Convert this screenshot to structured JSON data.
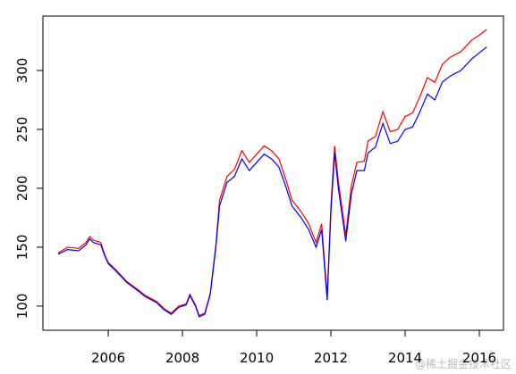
{
  "chart_data": {
    "type": "line",
    "x": [
      2004.65,
      2004.9,
      2005.2,
      2005.4,
      2005.5,
      2005.6,
      2005.8,
      2005.9,
      2006.0,
      2006.2,
      2006.5,
      2006.8,
      2007.0,
      2007.3,
      2007.5,
      2007.7,
      2007.9,
      2008.1,
      2008.2,
      2008.35,
      2008.45,
      2008.6,
      2008.75,
      2008.9,
      2009.0,
      2009.2,
      2009.4,
      2009.6,
      2009.8,
      2010.0,
      2010.2,
      2010.4,
      2010.6,
      2010.8,
      2010.95,
      2011.2,
      2011.4,
      2011.6,
      2011.75,
      2011.9,
      2012.0,
      2012.1,
      2012.2,
      2012.4,
      2012.55,
      2012.7,
      2012.9,
      2013.0,
      2013.2,
      2013.4,
      2013.6,
      2013.8,
      2014.0,
      2014.2,
      2014.4,
      2014.6,
      2014.8,
      2015.0,
      2015.2,
      2015.5,
      2015.8,
      2016.0,
      2016.2
    ],
    "series": [
      {
        "name": "red",
        "color": "#ff0000",
        "values": [
          145,
          150,
          149,
          154,
          159,
          156,
          154,
          144,
          137,
          131,
          121,
          114,
          109,
          104,
          98,
          94,
          100,
          102,
          110,
          101,
          92,
          94,
          111,
          152,
          190,
          210,
          216,
          232,
          222,
          229,
          236,
          232,
          225,
          206,
          190,
          180,
          170,
          154,
          170,
          108,
          185,
          236,
          206,
          160,
          202,
          222,
          223,
          240,
          244,
          265,
          248,
          250,
          261,
          264,
          278,
          294,
          290,
          305,
          311,
          316,
          326,
          330,
          335
        ]
      },
      {
        "name": "blue",
        "color": "#0000ff",
        "values": [
          144,
          148,
          147,
          152,
          157,
          154,
          152,
          143,
          136,
          130,
          120,
          113,
          108,
          103,
          97,
          93,
          99,
          101,
          109,
          100,
          91,
          93,
          110,
          150,
          185,
          205,
          210,
          225,
          215,
          222,
          229,
          225,
          218,
          200,
          185,
          175,
          165,
          150,
          165,
          105,
          180,
          230,
          200,
          155,
          195,
          215,
          215,
          230,
          235,
          255,
          238,
          240,
          250,
          252,
          265,
          280,
          275,
          290,
          295,
          300,
          310,
          315,
          320
        ]
      }
    ],
    "xlim": [
      2004.24,
      2016.65
    ],
    "ylim": [
      79.5,
      346.2
    ],
    "xticks": [
      2006,
      2008,
      2010,
      2012,
      2014,
      2016
    ],
    "yticks": [
      100,
      150,
      200,
      250,
      300
    ]
  },
  "watermark": "@稀土掘金技术社区"
}
